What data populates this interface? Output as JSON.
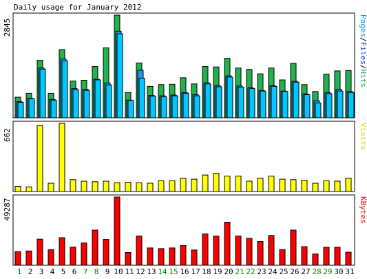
{
  "chart_data": {
    "type": "bar",
    "title": "Daily usage for January 2012",
    "categories": [
      "1",
      "2",
      "3",
      "4",
      "5",
      "6",
      "7",
      "8",
      "9",
      "10",
      "11",
      "12",
      "13",
      "14",
      "15",
      "16",
      "17",
      "18",
      "19",
      "20",
      "21",
      "22",
      "23",
      "24",
      "25",
      "26",
      "27",
      "28",
      "29",
      "30",
      "31"
    ],
    "weekend_days": [
      "1",
      "7",
      "8",
      "14",
      "15",
      "21",
      "22",
      "28",
      "29"
    ],
    "colors": {
      "hits": "#22b14c",
      "files": "#2196f3",
      "pages": "#00c8ff",
      "visits": "#ffff00",
      "kbytes": "#ff0000",
      "weekday_label": "#000000",
      "weekend_label": "#008000"
    },
    "panels": [
      {
        "id": "usage",
        "scale_label": "2845",
        "ymax": 2845,
        "legend": [
          {
            "text": "Pages",
            "color": "#00a0ff"
          },
          {
            "text": "/",
            "color": "#000000"
          },
          {
            "text": "Files",
            "color": "#0040ff"
          },
          {
            "text": "/",
            "color": "#000000"
          },
          {
            "text": "Hits",
            "color": "#22b14c"
          }
        ],
        "series": [
          {
            "name": "Hits",
            "values": [
              570,
              680,
              1590,
              680,
              1890,
              1020,
              1040,
              1420,
              1940,
              2845,
              700,
              1520,
              870,
              920,
              930,
              1110,
              940,
              1420,
              1410,
              1650,
              1380,
              1340,
              1220,
              1380,
              1050,
              1510,
              920,
              730,
              1210,
              1300,
              1310
            ]
          },
          {
            "name": "Files",
            "values": [
              450,
              540,
              1380,
              510,
              1630,
              810,
              790,
              1070,
              960,
              2400,
              490,
              1320,
              620,
              610,
              630,
              700,
              640,
              970,
              890,
              1160,
              880,
              830,
              760,
              890,
              740,
              1010,
              660,
              470,
              700,
              790,
              730
            ]
          },
          {
            "name": "Pages",
            "values": [
              430,
              530,
              1350,
              490,
              1580,
              780,
              760,
              1050,
              910,
              2330,
              480,
              1100,
              600,
              580,
              610,
              680,
              610,
              940,
              860,
              1130,
              850,
              810,
              740,
              870,
              730,
              990,
              640,
              410,
              670,
              740,
              700
            ]
          }
        ]
      },
      {
        "id": "visits",
        "scale_label": "662",
        "ymax": 662,
        "legend": [
          {
            "text": "Visits",
            "color": "#e0e000"
          }
        ],
        "series": [
          {
            "name": "Visits",
            "values": [
              50,
              45,
              640,
              80,
              662,
              115,
              100,
              95,
              100,
              85,
              90,
              85,
              80,
              105,
              105,
              130,
              120,
              160,
              175,
              150,
              150,
              100,
              130,
              150,
              120,
              115,
              110,
              80,
              105,
              100,
              130
            ]
          }
        ]
      },
      {
        "id": "kbytes",
        "scale_label": "49287",
        "ymax": 49287,
        "legend": [
          {
            "text": "KBytes",
            "color": "#ff0000"
          }
        ],
        "series": [
          {
            "name": "KBytes",
            "values": [
              9800,
              10300,
              18800,
              11200,
              19900,
              13100,
              16100,
              25400,
              18600,
              49287,
              9200,
              21100,
              12500,
              12000,
              12500,
              14200,
              11000,
              22600,
              21000,
              31100,
              21100,
              19400,
              17200,
              21500,
              11300,
              25400,
              13400,
              8100,
              13000,
              13000,
              9400
            ]
          }
        ]
      }
    ]
  }
}
